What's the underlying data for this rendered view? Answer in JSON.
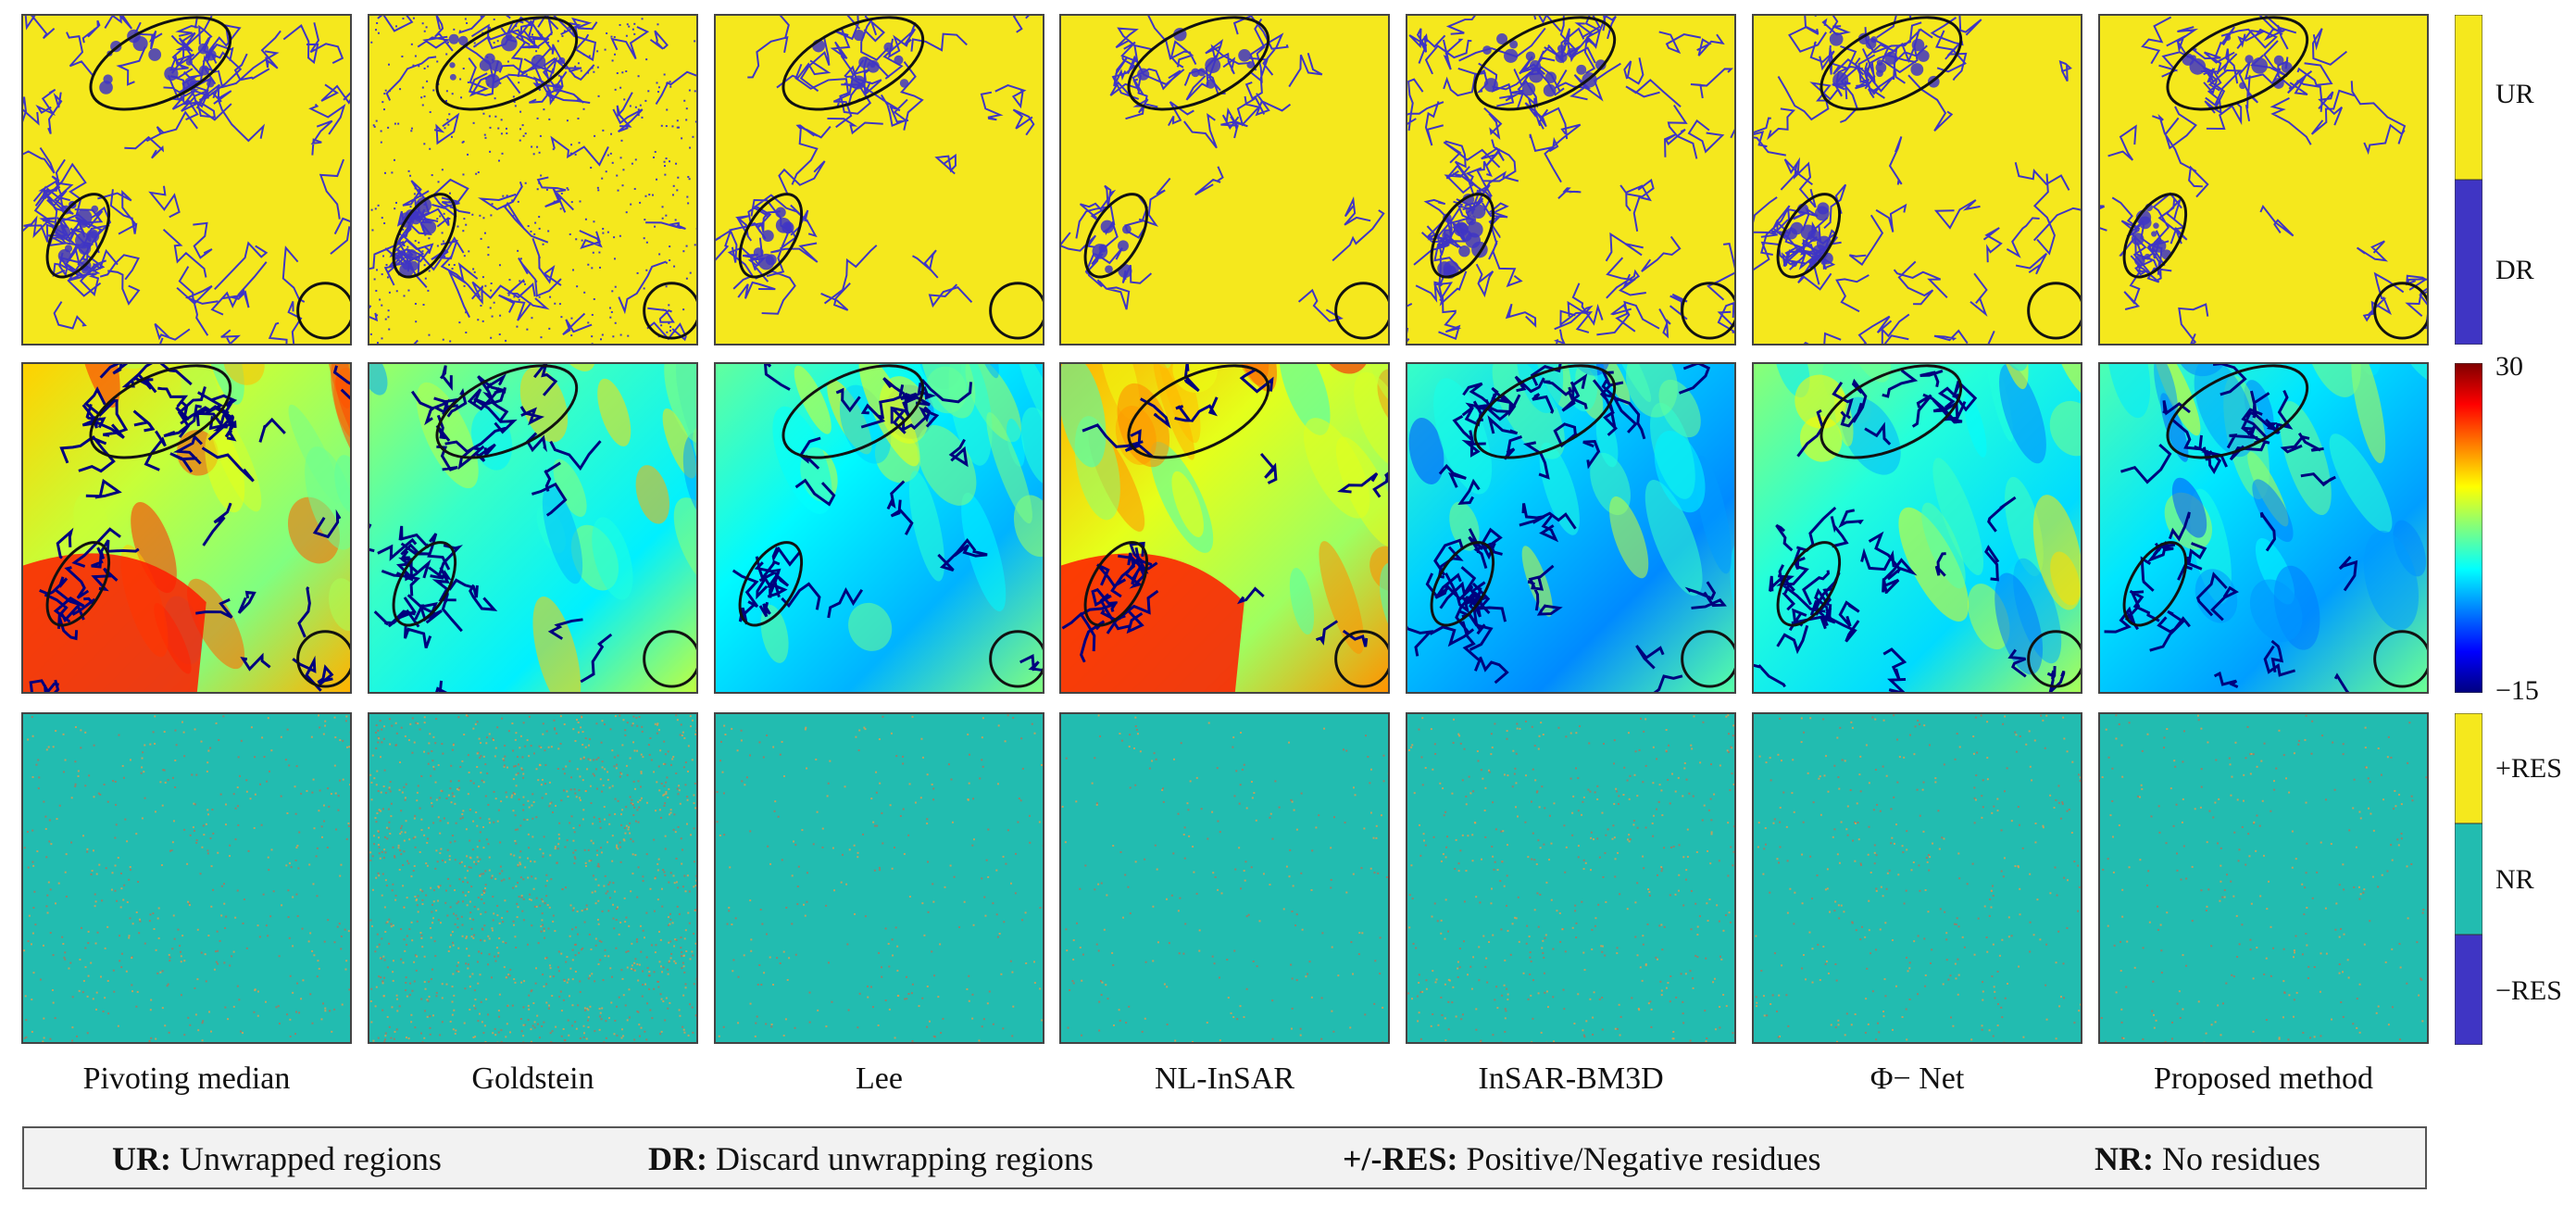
{
  "methods": [
    "Pivoting median",
    "Goldstein",
    "Lee",
    "NL-InSAR",
    "InSAR-BM3D",
    "Φ− Net",
    "Proposed method"
  ],
  "colorbar_top": {
    "upper_label": "UR",
    "lower_label": "DR",
    "upper_color": "#f5e81d",
    "lower_color": "#3f35c4"
  },
  "colorbar_middle": {
    "max_label": "30",
    "min_label": "−15",
    "colormap": "jet"
  },
  "colorbar_bottom": {
    "upper_label": "+RES",
    "middle_label": "NR",
    "lower_label": "−RES",
    "upper_color": "#f5e81d",
    "middle_color": "#22bcb0",
    "lower_color": "#3f35c4"
  },
  "legend": [
    {
      "key": "UR:",
      "text": " Unwrapped regions"
    },
    {
      "key": "DR:",
      "text": " Discard unwrapping regions"
    },
    {
      "key": "+/-RES:",
      "text": " Positive/Negative residues"
    },
    {
      "key": "NR:",
      "text": " No residues"
    }
  ],
  "colors": {
    "yellow": "#f5e81d",
    "purple": "#3f35c4",
    "teal": "#22bcb0",
    "navy": "#00007e",
    "ellipse": "#111111"
  }
}
